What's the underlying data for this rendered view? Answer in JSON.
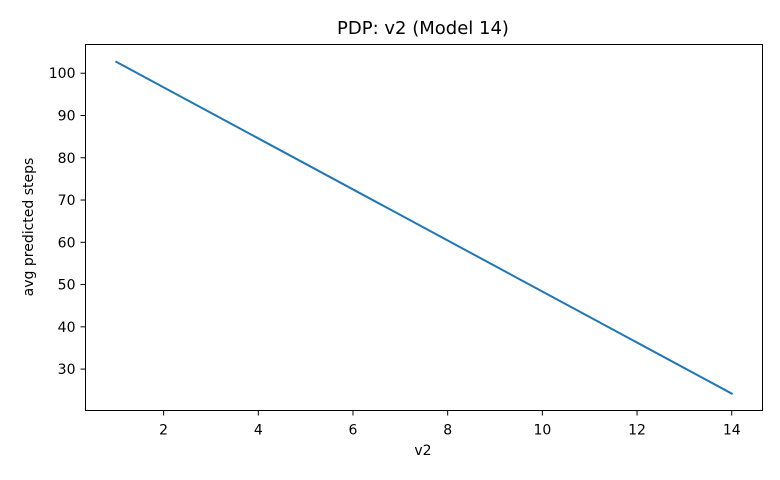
{
  "chart_data": {
    "type": "line",
    "title": "PDP: v2 (Model 14)",
    "xlabel": "v2",
    "ylabel": "avg predicted steps",
    "xlim": [
      0.35,
      14.65
    ],
    "ylim": [
      20.2,
      106.8
    ],
    "xticks": [
      2,
      4,
      6,
      8,
      10,
      12,
      14
    ],
    "yticks": [
      30,
      40,
      50,
      60,
      70,
      80,
      90,
      100
    ],
    "grid": false,
    "legend": "none",
    "series": [
      {
        "color": "#1f77b4",
        "x": [
          1,
          14
        ],
        "y": [
          102.7,
          24.2
        ]
      }
    ]
  }
}
